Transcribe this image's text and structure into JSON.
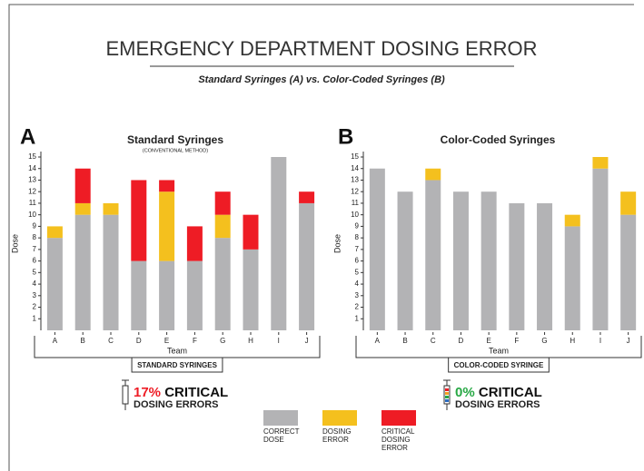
{
  "title": "EMERGENCY DEPARTMENT DOSING ERROR",
  "subtitle": "Standard Syringes (A) vs. Color-Coded Syringes (B)",
  "chart_data": [
    {
      "type": "bar",
      "stacked": true,
      "panel": "A",
      "title": "Standard Syringes",
      "subtitle": "(CONVENTIONAL METHOD)",
      "xlabel": "Team",
      "ylabel": "Dose",
      "group_label": "STANDARD SYRINGES",
      "categories": [
        "A",
        "B",
        "C",
        "D",
        "E",
        "F",
        "G",
        "H",
        "I",
        "J"
      ],
      "series": [
        {
          "name": "CORRECT DOSE",
          "color": "#b3b3b5",
          "values": [
            8,
            10,
            10,
            6,
            6,
            6,
            8,
            7,
            15,
            11
          ]
        },
        {
          "name": "DOSING ERROR",
          "color": "#f4c01e",
          "values": [
            1,
            1,
            1,
            0,
            6,
            0,
            2,
            0,
            0,
            0
          ]
        },
        {
          "name": "CRITICAL DOSING ERROR",
          "color": "#ee1c25",
          "values": [
            0,
            3,
            0,
            7,
            1,
            3,
            2,
            3,
            0,
            1
          ]
        }
      ],
      "ylim": [
        0,
        15
      ],
      "yticks": [
        1,
        2,
        3,
        4,
        5,
        6,
        7,
        8,
        9,
        10,
        11,
        12,
        13,
        14,
        15
      ],
      "callout": {
        "value": 17,
        "label": "17%",
        "color": "#ee1c25",
        "text": "CRITICAL",
        "subtext": "DOSING ERRORS"
      }
    },
    {
      "type": "bar",
      "stacked": true,
      "panel": "B",
      "title": "Color-Coded Syringes",
      "xlabel": "Team",
      "ylabel": "Dose",
      "group_label": "COLOR-CODED SYRINGE",
      "categories": [
        "A",
        "B",
        "C",
        "D",
        "E",
        "F",
        "G",
        "H",
        "I",
        "J"
      ],
      "series": [
        {
          "color": "#b3b3b5",
          "values": [
            14,
            12,
            13,
            12,
            12,
            11,
            11,
            9,
            14,
            10
          ]
        },
        {
          "color": "#f4c01e",
          "values": [
            0,
            0,
            1,
            0,
            0,
            0,
            0,
            1,
            1,
            2
          ]
        },
        {
          "color": "#ee1c25",
          "values": [
            0,
            0,
            0,
            0,
            0,
            0,
            0,
            0,
            0,
            0
          ]
        }
      ],
      "ylim": [
        0,
        15
      ],
      "yticks": [
        1,
        2,
        3,
        4,
        5,
        6,
        7,
        8,
        9,
        10,
        11,
        12,
        13,
        14,
        15
      ],
      "callout": {
        "value": 0,
        "label": "0%",
        "color": "#27a844",
        "text": "CRITICAL",
        "subtext": "DOSING ERRORS"
      }
    }
  ]
}
